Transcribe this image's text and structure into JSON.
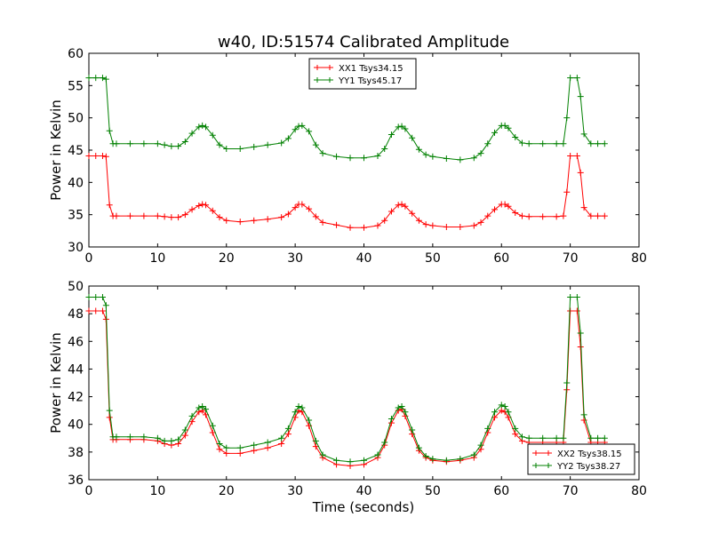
{
  "figure": {
    "title": "w40, ID:51574 Calibrated Amplitude",
    "xlabel": "Time (seconds)"
  },
  "chart_data": [
    {
      "type": "line",
      "title": "w40, ID:51574 Calibrated Amplitude",
      "xlabel": "",
      "ylabel": "Power in Kelvin",
      "xlim": [
        0,
        80
      ],
      "ylim": [
        30,
        60
      ],
      "xticks": [
        "0",
        "10",
        "20",
        "30",
        "40",
        "50",
        "60",
        "70",
        "80"
      ],
      "yticks": [
        "30",
        "35",
        "40",
        "45",
        "50",
        "55",
        "60"
      ],
      "grid": false,
      "legend_position": "top-center",
      "marker": "+",
      "series": [
        {
          "name": "XX1 Tsys34.15",
          "color": "#ff0000",
          "x": [
            0,
            1,
            2,
            2.5,
            3,
            3.5,
            4,
            6,
            8,
            10,
            11,
            12,
            13,
            14,
            15,
            16,
            16.5,
            17,
            18,
            19,
            20,
            22,
            24,
            26,
            28,
            29,
            30,
            30.5,
            31,
            32,
            33,
            34,
            36,
            38,
            40,
            42,
            43,
            44,
            45,
            45.5,
            46,
            47,
            48,
            49,
            50,
            52,
            54,
            56,
            57,
            58,
            59,
            60,
            60.5,
            61,
            62,
            63,
            64,
            66,
            68,
            69,
            69.5,
            70,
            71,
            71.5,
            72,
            73,
            74,
            75
          ],
          "y": [
            44.1,
            44.1,
            44.1,
            44.0,
            36.5,
            34.8,
            34.8,
            34.8,
            34.8,
            34.8,
            34.7,
            34.6,
            34.6,
            35.0,
            35.8,
            36.4,
            36.6,
            36.5,
            35.6,
            34.6,
            34.1,
            33.9,
            34.1,
            34.3,
            34.6,
            35.1,
            36.1,
            36.6,
            36.6,
            35.9,
            34.7,
            33.8,
            33.4,
            33.0,
            33.0,
            33.3,
            34.1,
            35.5,
            36.5,
            36.6,
            36.3,
            35.2,
            34.1,
            33.5,
            33.3,
            33.1,
            33.1,
            33.3,
            33.8,
            34.8,
            35.8,
            36.6,
            36.6,
            36.3,
            35.3,
            34.8,
            34.7,
            34.7,
            34.7,
            34.8,
            38.5,
            44.1,
            44.1,
            41.5,
            36.1,
            34.8,
            34.8,
            34.8
          ]
        },
        {
          "name": "YY1 Tsys45.17",
          "color": "#008000",
          "x": [
            0,
            1,
            2,
            2.5,
            3,
            3.5,
            4,
            6,
            8,
            10,
            11,
            12,
            13,
            14,
            15,
            16,
            16.5,
            17,
            18,
            19,
            20,
            22,
            24,
            26,
            28,
            29,
            30,
            30.5,
            31,
            32,
            33,
            34,
            36,
            38,
            40,
            42,
            43,
            44,
            45,
            45.5,
            46,
            47,
            48,
            49,
            50,
            52,
            54,
            56,
            57,
            58,
            59,
            60,
            60.5,
            61,
            62,
            63,
            64,
            66,
            68,
            69,
            69.5,
            70,
            71,
            71.5,
            72,
            73,
            74,
            75
          ],
          "y": [
            56.2,
            56.2,
            56.2,
            56.0,
            48.0,
            46.0,
            46.0,
            46.0,
            46.0,
            46.0,
            45.8,
            45.6,
            45.6,
            46.3,
            47.6,
            48.6,
            48.8,
            48.6,
            47.3,
            45.8,
            45.2,
            45.2,
            45.5,
            45.8,
            46.1,
            46.8,
            48.2,
            48.7,
            48.8,
            47.9,
            45.8,
            44.5,
            44.0,
            43.8,
            43.8,
            44.1,
            45.2,
            47.4,
            48.6,
            48.7,
            48.3,
            46.9,
            45.1,
            44.3,
            44.0,
            43.7,
            43.5,
            43.8,
            44.5,
            46.0,
            47.7,
            48.8,
            48.8,
            48.4,
            47.0,
            46.1,
            46.0,
            46.0,
            46.0,
            46.0,
            50.0,
            56.2,
            56.2,
            53.3,
            47.5,
            46.0,
            46.0,
            46.0
          ]
        }
      ]
    },
    {
      "type": "line",
      "title": "",
      "xlabel": "Time (seconds)",
      "ylabel": "Power in Kelvin",
      "xlim": [
        0,
        80
      ],
      "ylim": [
        36,
        50
      ],
      "xticks": [
        "0",
        "10",
        "20",
        "30",
        "40",
        "50",
        "60",
        "70",
        "80"
      ],
      "yticks": [
        "36",
        "38",
        "40",
        "42",
        "44",
        "46",
        "48",
        "50"
      ],
      "grid": false,
      "legend_position": "bottom-right",
      "marker": "+",
      "series": [
        {
          "name": "XX2 Tsys38.15",
          "color": "#ff0000",
          "x": [
            0,
            1,
            2,
            2.5,
            3,
            3.5,
            4,
            6,
            8,
            10,
            11,
            12,
            13,
            14,
            15,
            16,
            16.5,
            17,
            18,
            19,
            20,
            22,
            24,
            26,
            28,
            29,
            30,
            30.5,
            31,
            32,
            33,
            34,
            36,
            38,
            40,
            42,
            43,
            44,
            45,
            45.5,
            46,
            47,
            48,
            49,
            50,
            52,
            54,
            56,
            57,
            58,
            59,
            60,
            60.5,
            61,
            62,
            63,
            64,
            66,
            68,
            69,
            69.5,
            70,
            71,
            71.5,
            72,
            73,
            74,
            75
          ],
          "y": [
            48.2,
            48.2,
            48.2,
            47.6,
            40.5,
            38.9,
            38.9,
            38.9,
            38.9,
            38.8,
            38.6,
            38.5,
            38.6,
            39.2,
            40.2,
            40.9,
            41.0,
            40.7,
            39.4,
            38.2,
            37.9,
            37.9,
            38.1,
            38.3,
            38.6,
            39.3,
            40.5,
            41.0,
            40.9,
            39.9,
            38.4,
            37.6,
            37.1,
            37.0,
            37.1,
            37.6,
            38.5,
            40.1,
            41.0,
            41.1,
            40.6,
            39.3,
            38.1,
            37.6,
            37.4,
            37.3,
            37.4,
            37.6,
            38.2,
            39.4,
            40.5,
            41.0,
            40.9,
            40.5,
            39.3,
            38.8,
            38.7,
            38.7,
            38.7,
            38.7,
            42.5,
            48.2,
            48.2,
            45.6,
            40.3,
            38.7,
            38.7,
            38.7
          ]
        },
        {
          "name": "YY2 Tsys38.27",
          "color": "#008000",
          "x": [
            0,
            1,
            2,
            2.5,
            3,
            3.5,
            4,
            6,
            8,
            10,
            11,
            12,
            13,
            14,
            15,
            16,
            16.5,
            17,
            18,
            19,
            20,
            22,
            24,
            26,
            28,
            29,
            30,
            30.5,
            31,
            32,
            33,
            34,
            36,
            38,
            40,
            42,
            43,
            44,
            45,
            45.5,
            46,
            47,
            48,
            49,
            50,
            52,
            54,
            56,
            57,
            58,
            59,
            60,
            60.5,
            61,
            62,
            63,
            64,
            66,
            68,
            69,
            69.5,
            70,
            71,
            71.5,
            72,
            73,
            74,
            75
          ],
          "y": [
            49.2,
            49.2,
            49.2,
            48.6,
            41.0,
            39.1,
            39.1,
            39.1,
            39.1,
            39.0,
            38.8,
            38.8,
            38.9,
            39.6,
            40.6,
            41.2,
            41.3,
            41.1,
            39.9,
            38.6,
            38.3,
            38.3,
            38.5,
            38.7,
            39.0,
            39.7,
            40.9,
            41.3,
            41.2,
            40.3,
            38.8,
            37.8,
            37.4,
            37.3,
            37.4,
            37.8,
            38.7,
            40.4,
            41.2,
            41.3,
            40.9,
            39.6,
            38.3,
            37.7,
            37.5,
            37.4,
            37.5,
            37.8,
            38.5,
            39.7,
            40.9,
            41.4,
            41.3,
            40.9,
            39.7,
            39.1,
            39.0,
            39.0,
            39.0,
            39.0,
            43.0,
            49.2,
            49.2,
            46.6,
            40.7,
            39.0,
            39.0,
            39.0
          ]
        }
      ]
    }
  ]
}
